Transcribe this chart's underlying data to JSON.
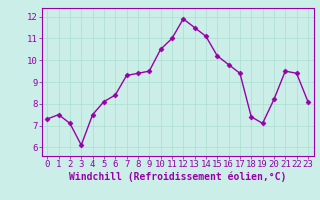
{
  "x": [
    0,
    1,
    2,
    3,
    4,
    5,
    6,
    7,
    8,
    9,
    10,
    11,
    12,
    13,
    14,
    15,
    16,
    17,
    18,
    19,
    20,
    21,
    22,
    23
  ],
  "y": [
    7.3,
    7.5,
    7.1,
    6.1,
    7.5,
    8.1,
    8.4,
    9.3,
    9.4,
    9.5,
    10.5,
    11.0,
    11.9,
    11.5,
    11.1,
    10.2,
    9.8,
    9.4,
    7.4,
    7.1,
    8.2,
    9.5,
    9.4,
    8.1
  ],
  "line_color": "#9900aa",
  "marker": "D",
  "marker_size": 2.5,
  "bg_color": "#cceee8",
  "grid_color": "#aaddcc",
  "xlabel": "Windchill (Refroidissement éolien,°C)",
  "xlabel_color": "#9900aa",
  "ylim": [
    5.6,
    12.4
  ],
  "xlim": [
    -0.5,
    23.5
  ],
  "yticks": [
    6,
    7,
    8,
    9,
    10,
    11,
    12
  ],
  "xticks": [
    0,
    1,
    2,
    3,
    4,
    5,
    6,
    7,
    8,
    9,
    10,
    11,
    12,
    13,
    14,
    15,
    16,
    17,
    18,
    19,
    20,
    21,
    22,
    23
  ],
  "tick_color": "#9900aa",
  "tick_fontsize": 6.5,
  "xlabel_fontsize": 7,
  "spine_color": "#9900aa",
  "linewidth": 1.0
}
